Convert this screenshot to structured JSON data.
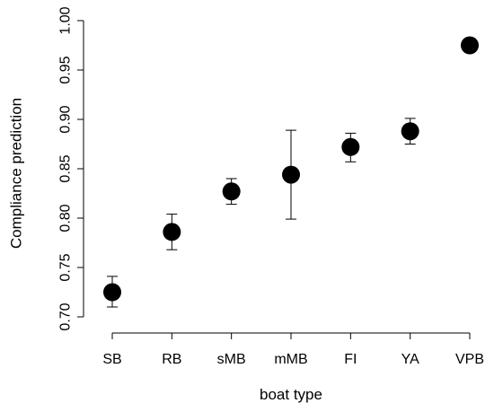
{
  "chart_data": {
    "type": "scatter",
    "title": "",
    "xlabel": "boat type",
    "ylabel": "Compliance prediction",
    "categories": [
      "SB",
      "RB",
      "sMB",
      "mMB",
      "FI",
      "YA",
      "VPB"
    ],
    "values": [
      0.725,
      0.786,
      0.827,
      0.844,
      0.872,
      0.888,
      0.975
    ],
    "error_lower": [
      0.71,
      0.768,
      0.814,
      0.799,
      0.857,
      0.875,
      null
    ],
    "error_upper": [
      0.741,
      0.804,
      0.84,
      0.889,
      0.886,
      0.901,
      null
    ],
    "ylim": [
      0.7,
      1.0
    ],
    "yticks": [
      "0.70",
      "0.75",
      "0.80",
      "0.85",
      "0.90",
      "0.95",
      "1.00"
    ],
    "ytick_values": [
      0.7,
      0.75,
      0.8,
      0.85,
      0.9,
      0.95,
      1.0
    ],
    "grid": false,
    "legend": "none",
    "point_color": "#000000"
  }
}
